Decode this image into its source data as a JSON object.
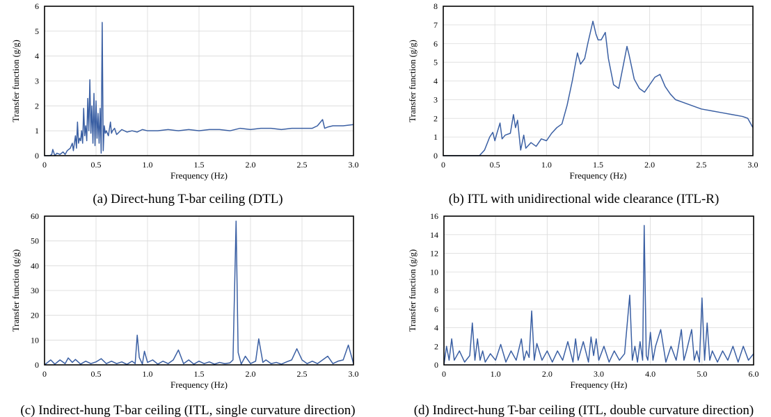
{
  "chart_data": [
    {
      "id": "a",
      "type": "line",
      "caption": "(a) Direct-hung T-bar ceiling (DTL)",
      "xlabel": "Frequency (Hz)",
      "ylabel": "Transfer function (g/g)",
      "xlim": [
        0,
        3.0
      ],
      "ylim": [
        0,
        6
      ],
      "xticks": [
        0,
        0.5,
        1.0,
        1.5,
        2.0,
        2.5,
        3.0
      ],
      "xtick_labels": [
        "0",
        "0.5",
        "1.0",
        "1.5",
        "2.0",
        "2.5",
        "3.0"
      ],
      "yticks": [
        0,
        1,
        2,
        3,
        4,
        5,
        6
      ],
      "ytick_labels": [
        "0",
        "1",
        "2",
        "3",
        "4",
        "5",
        "6"
      ],
      "grid": true,
      "color": "#3a5fa3",
      "series": [
        {
          "x": [
            0,
            0.05,
            0.07,
            0.08,
            0.1,
            0.12,
            0.15,
            0.18,
            0.2,
            0.22,
            0.25,
            0.27,
            0.28,
            0.3,
            0.31,
            0.32,
            0.33,
            0.34,
            0.35,
            0.36,
            0.37,
            0.38,
            0.39,
            0.4,
            0.41,
            0.42,
            0.43,
            0.44,
            0.45,
            0.46,
            0.47,
            0.48,
            0.49,
            0.5,
            0.51,
            0.52,
            0.53,
            0.54,
            0.55,
            0.56,
            0.57,
            0.58,
            0.59,
            0.6,
            0.62,
            0.64,
            0.65,
            0.66,
            0.68,
            0.7,
            0.75,
            0.8,
            0.85,
            0.9,
            0.95,
            1.0,
            1.1,
            1.2,
            1.3,
            1.4,
            1.5,
            1.6,
            1.7,
            1.8,
            1.9,
            2.0,
            2.1,
            2.2,
            2.3,
            2.4,
            2.5,
            2.6,
            2.65,
            2.7,
            2.72,
            2.75,
            2.8,
            2.9,
            3.0
          ],
          "y": [
            0,
            0,
            0.05,
            0.25,
            0,
            0.1,
            0.05,
            0.15,
            0.05,
            0.2,
            0.3,
            0.5,
            0.2,
            0.8,
            0.3,
            1.35,
            0.5,
            0.7,
            0.6,
            1.0,
            0.5,
            1.9,
            0.8,
            1.2,
            0.6,
            2.3,
            1.0,
            3.05,
            0.9,
            2.0,
            0.5,
            2.5,
            0.4,
            2.2,
            0.7,
            1.7,
            0.5,
            1.9,
            0.1,
            5.35,
            0.2,
            1.2,
            0.9,
            1.0,
            0.8,
            1.35,
            0.9,
            1.0,
            1.1,
            0.85,
            1.05,
            0.95,
            1.0,
            0.95,
            1.05,
            1.0,
            1.0,
            1.05,
            1.0,
            1.05,
            1.0,
            1.05,
            1.05,
            1.0,
            1.1,
            1.05,
            1.1,
            1.1,
            1.05,
            1.1,
            1.1,
            1.1,
            1.2,
            1.45,
            1.1,
            1.15,
            1.2,
            1.2,
            1.25
          ]
        }
      ]
    },
    {
      "id": "b",
      "type": "line",
      "caption": "(b) ITL with unidirectional wide clearance (ITL-R)",
      "xlabel": "Frequency (Hz)",
      "ylabel": "Transfer function (g/g)",
      "xlim": [
        0,
        3.0
      ],
      "ylim": [
        0,
        8
      ],
      "xticks": [
        0,
        0.5,
        1.0,
        1.5,
        2.0,
        2.5,
        3.0
      ],
      "xtick_labels": [
        "0",
        "0.5",
        "1.0",
        "1.5",
        "2.0",
        "2.5",
        "3.0"
      ],
      "yticks": [
        0,
        1,
        2,
        3,
        4,
        5,
        6,
        7,
        8
      ],
      "ytick_labels": [
        "0",
        "1",
        "2",
        "3",
        "4",
        "5",
        "6",
        "7",
        "8"
      ],
      "grid": true,
      "color": "#3a5fa3",
      "series": [
        {
          "x": [
            0,
            0.35,
            0.4,
            0.45,
            0.48,
            0.5,
            0.52,
            0.55,
            0.57,
            0.6,
            0.65,
            0.68,
            0.7,
            0.72,
            0.75,
            0.78,
            0.8,
            0.85,
            0.9,
            0.95,
            1.0,
            1.05,
            1.1,
            1.15,
            1.2,
            1.25,
            1.3,
            1.33,
            1.37,
            1.4,
            1.45,
            1.48,
            1.5,
            1.53,
            1.57,
            1.6,
            1.65,
            1.7,
            1.75,
            1.78,
            1.8,
            1.85,
            1.9,
            1.95,
            2.0,
            2.05,
            2.1,
            2.15,
            2.2,
            2.25,
            2.3,
            2.4,
            2.5,
            2.6,
            2.7,
            2.8,
            2.9,
            2.95,
            3.0
          ],
          "y": [
            0,
            0,
            0.3,
            1.0,
            1.25,
            0.8,
            1.2,
            1.75,
            0.9,
            1.1,
            1.2,
            2.2,
            1.5,
            1.9,
            0.3,
            1.1,
            0.4,
            0.7,
            0.5,
            0.9,
            0.8,
            1.2,
            1.5,
            1.7,
            2.7,
            4.0,
            5.5,
            4.9,
            5.2,
            6.0,
            7.2,
            6.5,
            6.2,
            6.2,
            6.6,
            5.2,
            3.8,
            3.6,
            5.0,
            5.85,
            5.4,
            4.1,
            3.6,
            3.4,
            3.8,
            4.2,
            4.35,
            3.7,
            3.3,
            3.0,
            2.9,
            2.7,
            2.5,
            2.4,
            2.3,
            2.2,
            2.1,
            2.0,
            1.5
          ]
        }
      ]
    },
    {
      "id": "c",
      "type": "line",
      "caption": "(c) Indirect-hung T-bar ceiling (ITL, single curvature direction)",
      "xlabel": "Frequency (Hz)",
      "ylabel": "Transfer function (g/g)",
      "xlim": [
        0,
        3.0
      ],
      "ylim": [
        0,
        60
      ],
      "xticks": [
        0,
        0.5,
        1.0,
        1.5,
        2.0,
        2.5,
        3.0
      ],
      "xtick_labels": [
        "0",
        "0.5",
        "1.0",
        "1.5",
        "2.0",
        "2.5",
        "3.0"
      ],
      "yticks": [
        0,
        10,
        20,
        30,
        40,
        50,
        60
      ],
      "ytick_labels": [
        "0",
        "10",
        "20",
        "30",
        "40",
        "50",
        "60"
      ],
      "grid": true,
      "color": "#3a5fa3",
      "series": [
        {
          "x": [
            0,
            0.03,
            0.06,
            0.1,
            0.15,
            0.2,
            0.23,
            0.27,
            0.3,
            0.35,
            0.4,
            0.45,
            0.5,
            0.55,
            0.6,
            0.65,
            0.7,
            0.75,
            0.8,
            0.85,
            0.88,
            0.9,
            0.92,
            0.95,
            0.97,
            1.0,
            1.05,
            1.1,
            1.15,
            1.2,
            1.25,
            1.3,
            1.35,
            1.4,
            1.45,
            1.5,
            1.55,
            1.6,
            1.65,
            1.7,
            1.75,
            1.8,
            1.83,
            1.86,
            1.88,
            1.91,
            1.95,
            2.0,
            2.05,
            2.08,
            2.12,
            2.15,
            2.2,
            2.25,
            2.3,
            2.35,
            2.4,
            2.45,
            2.5,
            2.55,
            2.6,
            2.65,
            2.7,
            2.75,
            2.8,
            2.85,
            2.9,
            2.95,
            3.0
          ],
          "y": [
            0,
            1.0,
            2.0,
            0.3,
            2.0,
            0.5,
            2.8,
            1.0,
            2.2,
            0.3,
            1.5,
            0.5,
            1.2,
            2.5,
            0.5,
            1.5,
            0.5,
            1.2,
            0.2,
            1.5,
            0.5,
            12.0,
            3.0,
            0.3,
            5.5,
            1.0,
            2.0,
            0.3,
            1.5,
            0.5,
            2.0,
            6.0,
            0.5,
            2.0,
            0.3,
            1.5,
            0.5,
            1.2,
            0.3,
            1.0,
            0.5,
            0.8,
            2.0,
            58.0,
            5.0,
            0.3,
            3.5,
            0.5,
            1.5,
            10.5,
            1.0,
            2.0,
            0.5,
            1.0,
            0.3,
            1.2,
            2.0,
            6.5,
            2.0,
            0.5,
            1.5,
            0.5,
            2.0,
            3.5,
            0.5,
            1.5,
            2.0,
            8.0,
            0.5
          ]
        }
      ]
    },
    {
      "id": "d",
      "type": "line",
      "caption": "(d) Indirect-hung T-bar ceiling (ITL, double curvature direction)",
      "xlabel": "Frequency (Hz)",
      "ylabel": "Transfer function (g/g)",
      "xlim": [
        0,
        6.0
      ],
      "ylim": [
        0,
        16
      ],
      "xticks": [
        0,
        1.0,
        2.0,
        3.0,
        4.0,
        5.0,
        6.0
      ],
      "xtick_labels": [
        "0",
        "1.0",
        "2.0",
        "3.0",
        "4.0",
        "5.0",
        "6.0"
      ],
      "yticks": [
        0,
        2,
        4,
        6,
        8,
        10,
        12,
        14,
        16
      ],
      "ytick_labels": [
        "0",
        "2",
        "4",
        "6",
        "8",
        "10",
        "12",
        "14",
        "16"
      ],
      "grid": true,
      "color": "#3a5fa3",
      "series": [
        {
          "x": [
            0,
            0.05,
            0.1,
            0.15,
            0.2,
            0.3,
            0.4,
            0.5,
            0.55,
            0.6,
            0.65,
            0.7,
            0.75,
            0.8,
            0.9,
            1.0,
            1.1,
            1.2,
            1.3,
            1.4,
            1.5,
            1.55,
            1.6,
            1.65,
            1.7,
            1.75,
            1.8,
            1.9,
            2.0,
            2.1,
            2.2,
            2.3,
            2.4,
            2.5,
            2.55,
            2.6,
            2.7,
            2.8,
            2.85,
            2.9,
            2.95,
            3.0,
            3.1,
            3.2,
            3.3,
            3.4,
            3.5,
            3.6,
            3.65,
            3.7,
            3.75,
            3.8,
            3.85,
            3.88,
            3.92,
            3.95,
            4.0,
            4.05,
            4.1,
            4.2,
            4.3,
            4.4,
            4.5,
            4.6,
            4.65,
            4.7,
            4.8,
            4.85,
            4.9,
            4.95,
            5.0,
            5.05,
            5.1,
            5.15,
            5.2,
            5.3,
            5.4,
            5.5,
            5.6,
            5.7,
            5.8,
            5.9,
            6.0
          ],
          "y": [
            0,
            2.0,
            0.5,
            2.8,
            0.5,
            1.5,
            0.3,
            1.0,
            4.5,
            0.5,
            2.8,
            0.5,
            1.5,
            0.3,
            1.2,
            0.5,
            2.2,
            0.3,
            1.5,
            0.5,
            2.8,
            0.5,
            1.5,
            0.8,
            5.8,
            0.5,
            2.3,
            0.5,
            1.5,
            0.3,
            1.5,
            0.5,
            2.5,
            0.3,
            2.8,
            0.5,
            2.5,
            0.3,
            3.0,
            1.0,
            2.8,
            0.5,
            2.0,
            0.3,
            1.5,
            0.5,
            1.2,
            7.5,
            0.5,
            2.0,
            0.3,
            2.5,
            0.5,
            15.0,
            1.0,
            0.5,
            3.5,
            0.5,
            2.0,
            3.8,
            0.3,
            2.0,
            0.5,
            3.8,
            0.5,
            1.5,
            3.8,
            0.5,
            1.5,
            0.3,
            7.2,
            0.5,
            4.5,
            0.5,
            1.5,
            0.3,
            1.5,
            0.5,
            2.0,
            0.3,
            2.0,
            0.5,
            1.2
          ]
        }
      ]
    }
  ]
}
